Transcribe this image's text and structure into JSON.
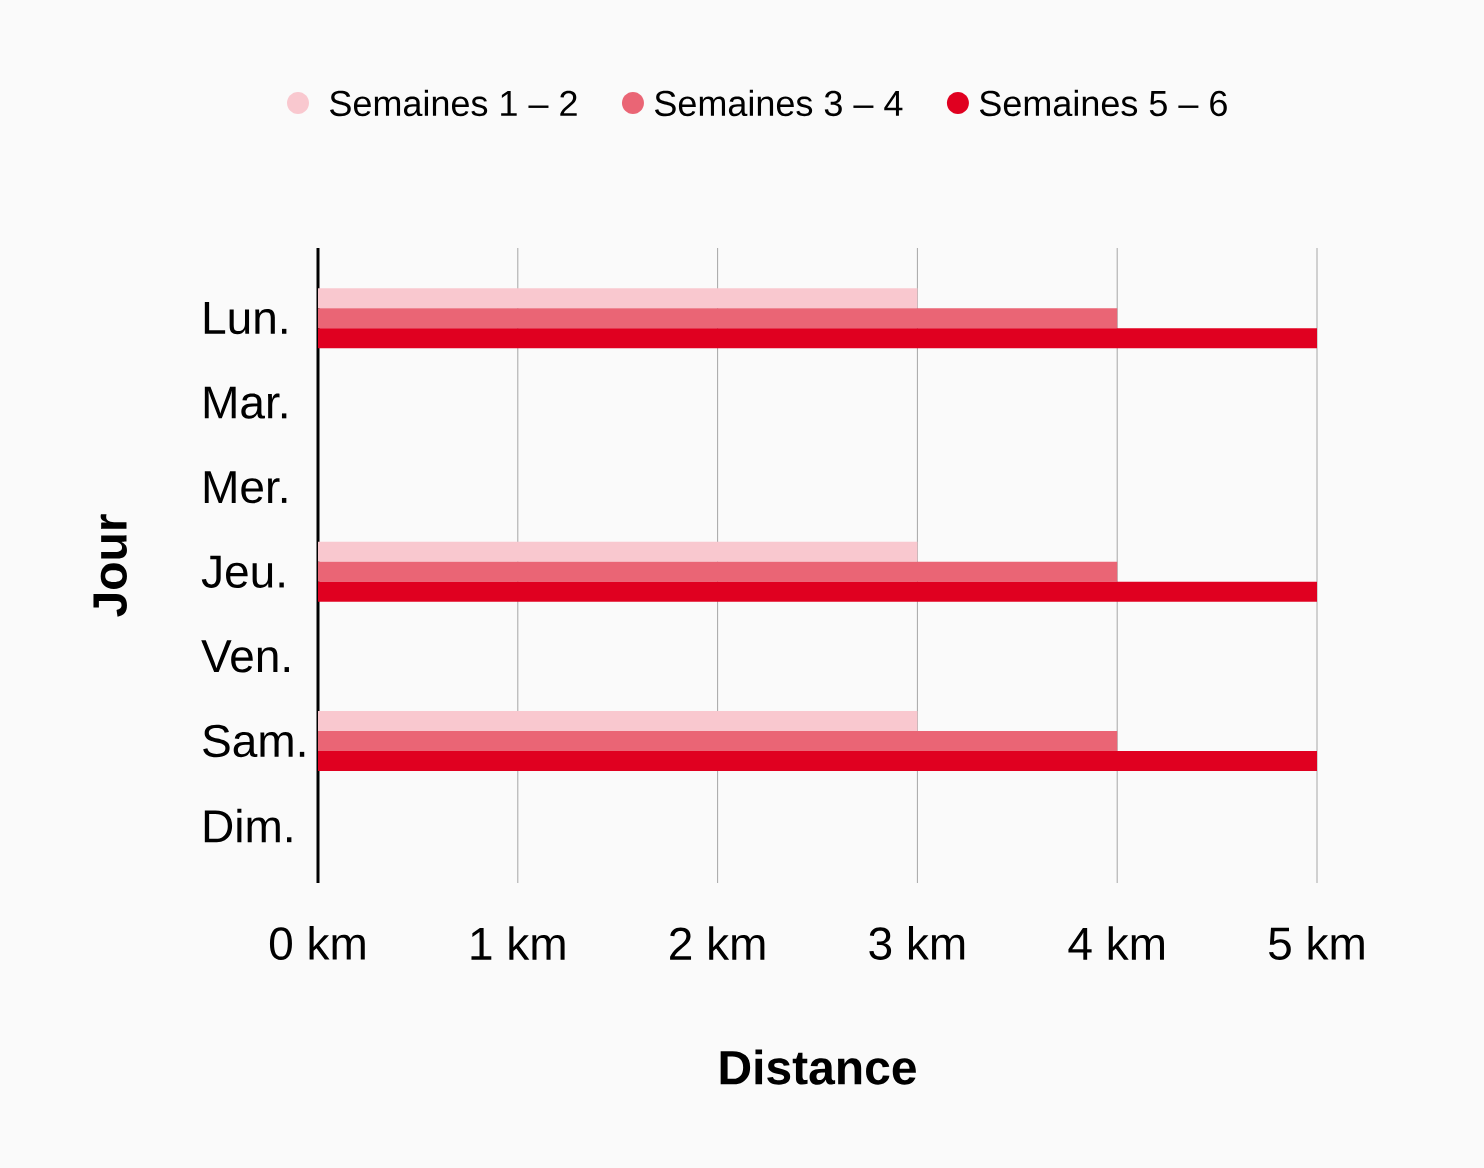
{
  "chart_data": {
    "type": "bar",
    "orientation": "horizontal",
    "xlabel": "Distance",
    "ylabel": "Jour",
    "categories": [
      "Lun.",
      "Mar.",
      "Mer.",
      "Jeu.",
      "Ven.",
      "Sam.",
      "Dim."
    ],
    "series": [
      {
        "name": "Semaines 1 – 2",
        "color": "#f9c8cf",
        "values": [
          3,
          null,
          null,
          3,
          null,
          3,
          null
        ]
      },
      {
        "name": "Semaines 3 – 4",
        "color": "#ea6575",
        "values": [
          4,
          null,
          null,
          4,
          null,
          4,
          null
        ]
      },
      {
        "name": "Semaines 5 – 6",
        "color": "#e00020",
        "values": [
          5,
          null,
          null,
          5,
          null,
          5,
          null
        ]
      }
    ],
    "xlim": [
      0,
      5
    ],
    "xticks": [
      {
        "value": 0,
        "label": "0 km"
      },
      {
        "value": 1,
        "label": "1 km"
      },
      {
        "value": 2,
        "label": "2 km"
      },
      {
        "value": 3,
        "label": "3 km"
      },
      {
        "value": 4,
        "label": "4 km"
      },
      {
        "value": 5,
        "label": "5 km"
      }
    ],
    "grid": "x",
    "legend": "top",
    "marker": "circle"
  }
}
